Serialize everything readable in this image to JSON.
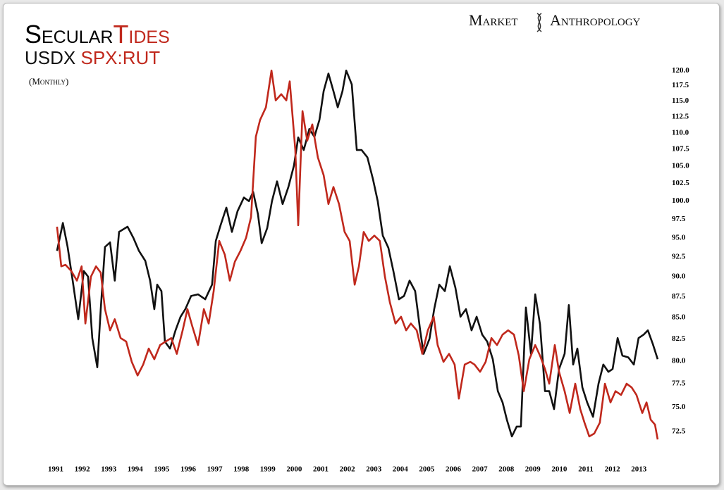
{
  "chart_data": {
    "type": "line",
    "title": [
      "Secular",
      "Tides"
    ],
    "subtitle": "(Monthly)",
    "brand": [
      "Market",
      "Anthropology"
    ],
    "log_y": true,
    "grid": false,
    "xlim": [
      1991,
      2014
    ],
    "xticks": [
      1991,
      1992,
      1993,
      1994,
      1995,
      1996,
      1997,
      1998,
      1999,
      2000,
      2001,
      2002,
      2003,
      2004,
      2005,
      2006,
      2007,
      2008,
      2009,
      2010,
      2011,
      2012,
      2013
    ],
    "ylim": [
      71.5,
      120.5
    ],
    "yticks": [
      72.5,
      {
        "value": 75,
        "label": "75.0"
      },
      77.5,
      {
        "value": 80,
        "label": "80.0"
      },
      82.5,
      {
        "value": 85,
        "label": "85.0"
      },
      87.5,
      {
        "value": 90,
        "label": "90.0"
      },
      92.5,
      {
        "value": 95,
        "label": "95.0"
      },
      97.5,
      {
        "value": 100,
        "label": "100.0"
      },
      102.5,
      {
        "value": 105,
        "label": "105.0"
      },
      107.5,
      {
        "value": 110,
        "label": "110.0"
      },
      112.5,
      {
        "value": 115,
        "label": "115.0"
      },
      117.5,
      {
        "value": 120,
        "label": "120.0"
      }
    ],
    "series": [
      {
        "name": "USDX",
        "color": "#111111",
        "x": [
          1991.05,
          1991.27,
          1991.45,
          1991.64,
          1991.85,
          1992.06,
          1992.22,
          1992.38,
          1992.57,
          1992.7,
          1992.86,
          1993.05,
          1993.23,
          1993.39,
          1993.71,
          1993.93,
          1994.14,
          1994.38,
          1994.56,
          1994.72,
          1994.83,
          1994.99,
          1995.12,
          1995.31,
          1995.52,
          1995.71,
          1995.89,
          1996.11,
          1996.37,
          1996.64,
          1996.9,
          1997.04,
          1997.22,
          1997.44,
          1997.65,
          1997.86,
          1998.1,
          1998.29,
          1998.45,
          1998.63,
          1998.77,
          1998.98,
          1999.16,
          1999.35,
          1999.56,
          1999.78,
          1999.99,
          2000.15,
          2000.36,
          2000.57,
          2000.76,
          2000.95,
          2001.11,
          2001.29,
          2001.48,
          2001.64,
          2001.82,
          2001.96,
          2002.17,
          2002.36,
          2002.54,
          2002.76,
          2002.97,
          2003.15,
          2003.34,
          2003.55,
          2003.74,
          2003.95,
          2004.14,
          2004.35,
          2004.56,
          2004.75,
          2004.88,
          2005.1,
          2005.28,
          2005.47,
          2005.68,
          2005.87,
          2006.08,
          2006.27,
          2006.48,
          2006.69,
          2006.88,
          2007.09,
          2007.28,
          2007.49,
          2007.68,
          2007.86,
          2008.02,
          2008.21,
          2008.39,
          2008.55,
          2008.74,
          2008.93,
          2009.09,
          2009.27,
          2009.46,
          2009.62,
          2009.8,
          2009.99,
          2010.2,
          2010.36,
          2010.52,
          2010.68,
          2010.87,
          2011.05,
          2011.27,
          2011.48,
          2011.66,
          2011.85,
          2012.01,
          2012.2,
          2012.38,
          2012.6,
          2012.81,
          2012.99,
          2013.18,
          2013.34,
          2013.53,
          2013.71
        ],
        "values": [
          93.3,
          97,
          93.8,
          89.5,
          84.8,
          90.7,
          90,
          82.6,
          79.3,
          86,
          93.8,
          94.4,
          89.5,
          95.8,
          96.5,
          95,
          93.3,
          92,
          89.5,
          86,
          89,
          88.2,
          82.2,
          81.4,
          83.5,
          85.1,
          86,
          87.6,
          87.8,
          87.2,
          89,
          94.6,
          96.7,
          99.1,
          95.8,
          98.6,
          100.5,
          100,
          101.3,
          98.2,
          94.3,
          96.3,
          100,
          102.8,
          99.6,
          102,
          105.1,
          109.3,
          107.4,
          110.6,
          109.4,
          112,
          116.6,
          119.5,
          116.6,
          114,
          116.6,
          120,
          117.7,
          107.4,
          107.4,
          106.3,
          103.1,
          100,
          95.3,
          93.7,
          90.7,
          87.2,
          87.6,
          89.5,
          88.2,
          83.5,
          80.8,
          82.5,
          86,
          89,
          88.2,
          91.3,
          88.6,
          85.1,
          86,
          83.5,
          85.1,
          83,
          82.2,
          80.2,
          76.7,
          75.5,
          73.7,
          72,
          73,
          73,
          86.2,
          80.8,
          87.8,
          84.2,
          76.7,
          76.7,
          74.8,
          79.1,
          80.8,
          86.5,
          79.6,
          81.4,
          77.1,
          75.5,
          74,
          77.5,
          79.6,
          78.8,
          79.1,
          82.6,
          80.6,
          80.4,
          79.6,
          82.6,
          83,
          83.5,
          81.9,
          80.2
        ]
      },
      {
        "name": "SPX:RUT",
        "color": "#c0281c",
        "x": [
          1991.05,
          1991.21,
          1991.37,
          1991.59,
          1991.8,
          1991.98,
          1992.12,
          1992.33,
          1992.52,
          1992.7,
          1992.86,
          1993.05,
          1993.23,
          1993.45,
          1993.66,
          1993.87,
          1994.09,
          1994.3,
          1994.51,
          1994.72,
          1994.94,
          1995.15,
          1995.36,
          1995.57,
          1995.79,
          1995.97,
          1996.16,
          1996.37,
          1996.59,
          1996.77,
          1996.96,
          1997.17,
          1997.38,
          1997.57,
          1997.76,
          1997.97,
          1998.18,
          1998.37,
          1998.55,
          1998.71,
          1998.93,
          1999.14,
          1999.3,
          1999.51,
          1999.7,
          1999.83,
          2000.04,
          2000.15,
          2000.31,
          2000.49,
          2000.68,
          2000.89,
          2001.11,
          2001.29,
          2001.48,
          2001.69,
          2001.9,
          2002.09,
          2002.28,
          2002.44,
          2002.62,
          2002.81,
          2003.02,
          2003.23,
          2003.42,
          2003.61,
          2003.82,
          2004.03,
          2004.22,
          2004.4,
          2004.62,
          2004.83,
          2005.04,
          2005.26,
          2005.41,
          2005.63,
          2005.84,
          2006.05,
          2006.21,
          2006.43,
          2006.64,
          2006.8,
          2007.01,
          2007.22,
          2007.44,
          2007.65,
          2007.86,
          2008.07,
          2008.29,
          2008.47,
          2008.66,
          2008.87,
          2009.09,
          2009.27,
          2009.46,
          2009.62,
          2009.83,
          2009.99,
          2010.2,
          2010.39,
          2010.6,
          2010.79,
          2010.95,
          2011.13,
          2011.32,
          2011.53,
          2011.72,
          2011.93,
          2012.12,
          2012.33,
          2012.54,
          2012.73,
          2012.91,
          2013.13,
          2013.29,
          2013.45,
          2013.61,
          2013.71
        ],
        "values": [
          96.5,
          91.3,
          91.5,
          90.7,
          89.5,
          91.3,
          84.3,
          90,
          91.3,
          90.5,
          86,
          83.5,
          84.8,
          82.6,
          82.2,
          79.9,
          78.4,
          79.6,
          81.4,
          80.2,
          81.8,
          82.2,
          82.6,
          80.8,
          83.5,
          86,
          83.9,
          81.8,
          86,
          84.3,
          88.2,
          94.6,
          92.8,
          89.5,
          91.9,
          93.3,
          95,
          97.8,
          109.4,
          112,
          114,
          120,
          115.1,
          116.1,
          115.1,
          118.2,
          107.4,
          96.7,
          113.4,
          108.8,
          111.3,
          106.3,
          103.7,
          99.6,
          102,
          99.6,
          95.8,
          94.6,
          89,
          91.3,
          95.8,
          94.6,
          95.3,
          94.6,
          90,
          86.8,
          84.3,
          85.1,
          83.5,
          84.3,
          83.5,
          80.8,
          83.5,
          85.1,
          81.8,
          79.9,
          80.8,
          79.6,
          75.9,
          79.6,
          79.9,
          79.6,
          78.8,
          79.9,
          82.6,
          81.8,
          83,
          83.5,
          83,
          80.6,
          76.7,
          80.2,
          81.8,
          80.6,
          79.1,
          77.5,
          81.8,
          78.8,
          76.7,
          74.4,
          77.5,
          74.8,
          73.4,
          72,
          72.3,
          73.4,
          77.5,
          75.5,
          76.7,
          76.3,
          77.5,
          77.1,
          76.3,
          74.4,
          75.5,
          73.7,
          73.2,
          71.7
        ]
      }
    ]
  }
}
